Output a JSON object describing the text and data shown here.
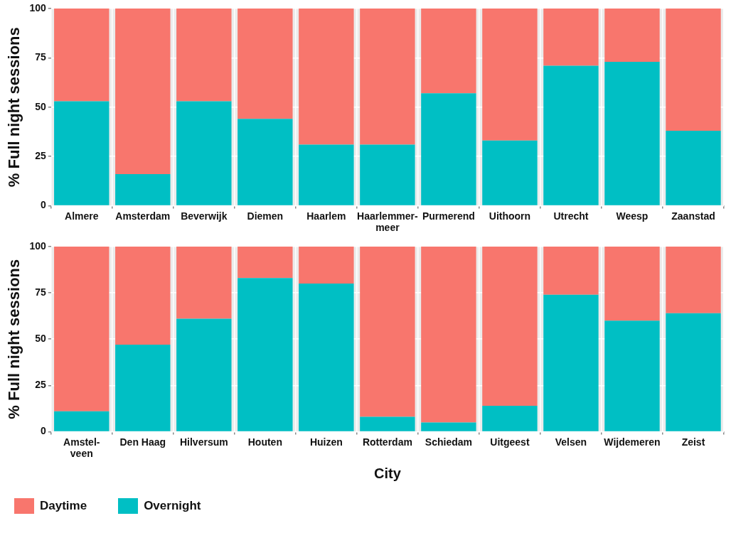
{
  "chart_data": [
    {
      "type": "bar",
      "stacked": true,
      "ylabel": "% Full night sessions",
      "categories": [
        "Almere",
        "Amsterdam",
        "Beverwijk",
        "Diemen",
        "Haarlem",
        "Haarlemmer-meer",
        "Purmerend",
        "Uithoorn",
        "Utrecht",
        "Weesp",
        "Zaanstad"
      ],
      "series": [
        {
          "color": "#00bfc4",
          "values": [
            53,
            16,
            53,
            44,
            31,
            31,
            57,
            33,
            71,
            73,
            38
          ]
        },
        {
          "color": "#f8766d",
          "values": [
            47,
            84,
            47,
            56,
            69,
            69,
            43,
            67,
            29,
            27,
            62
          ]
        }
      ],
      "ylim": [
        0,
        100
      ],
      "yticks": [
        0,
        25,
        50,
        75,
        100
      ],
      "grid": true,
      "legend": false
    },
    {
      "type": "bar",
      "stacked": true,
      "ylabel": "% Full night sessions",
      "xlabel": "City",
      "categories": [
        "Amstel-veen",
        "Den Haag",
        "Hilversum",
        "Houten",
        "Huizen",
        "Rotterdam",
        "Schiedam",
        "Uitgeest",
        "Velsen",
        "Wijdemeren",
        "Zeist"
      ],
      "series": [
        {
          "name": "Overnight",
          "color": "#00bfc4",
          "values": [
            11,
            47,
            61,
            83,
            80,
            8,
            5,
            14,
            74,
            60,
            64
          ]
        },
        {
          "name": "Daytime",
          "color": "#f8766d",
          "values": [
            89,
            53,
            39,
            17,
            20,
            92,
            95,
            86,
            26,
            40,
            36
          ]
        }
      ],
      "ylim": [
        0,
        100
      ],
      "yticks": [
        0,
        25,
        50,
        75,
        100
      ],
      "grid": true,
      "legend": "bottom left"
    }
  ]
}
